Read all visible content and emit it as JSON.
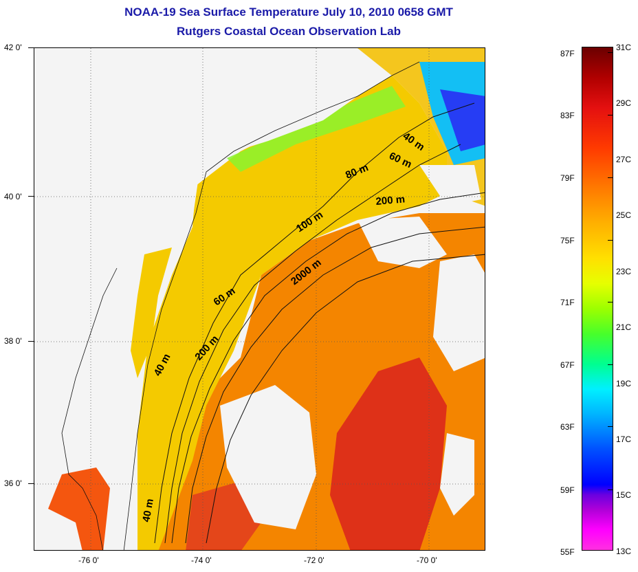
{
  "title": {
    "line1": "NOAA-19 Sea Surface Temperature July 10, 2010 0658 GMT",
    "line2": "Rutgers Coastal Ocean Observation Lab"
  },
  "colors": {
    "title": "#1a1aa8",
    "land": "#ffffff",
    "cloud": "#ffffff",
    "shelf_water": "#ffd200",
    "offshore_water": "#ff8c00",
    "warm_core": "#e42a10",
    "coastal_mix": "#40e0d0"
  },
  "map": {
    "latitude_labels": [
      "42 0'",
      "40 0'",
      "38 0'",
      "36 0'"
    ],
    "longitude_labels": [
      "-76 0'",
      "-74 0'",
      "-72 0'",
      "-70 0'"
    ],
    "isobath_labels": [
      {
        "text": "40 m"
      },
      {
        "text": "60 m"
      },
      {
        "text": "80 m"
      },
      {
        "text": "200 m"
      },
      {
        "text": "100 m"
      },
      {
        "text": "2000 m"
      },
      {
        "text": "60 m",
        "id": "b"
      },
      {
        "text": "200 m",
        "id": "b"
      },
      {
        "text": "40 m",
        "id": "b"
      },
      {
        "text": "40 m",
        "id": "c"
      }
    ]
  },
  "colorbar": {
    "fahrenheit_labels": [
      "87F",
      "83F",
      "79F",
      "75F",
      "71F",
      "67F",
      "63F",
      "59F",
      "55F"
    ],
    "celsius_labels": [
      "31C",
      "29C",
      "27C",
      "25C",
      "23C",
      "21C",
      "19C",
      "17C",
      "15C",
      "13C"
    ]
  }
}
